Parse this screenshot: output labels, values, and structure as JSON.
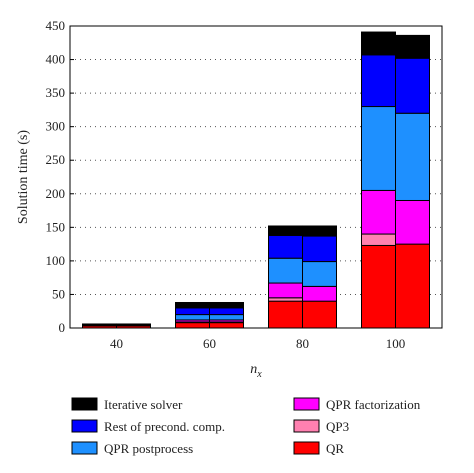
{
  "chart_data": {
    "type": "bar",
    "stacked": true,
    "categories": [
      "40",
      "60",
      "80",
      "100"
    ],
    "bars_per_category": 2,
    "xlabel_main": "n",
    "xlabel_sub": "x",
    "ylabel": "Solution time (s)",
    "ylim": [
      0,
      450
    ],
    "yticks": [
      0,
      50,
      100,
      150,
      200,
      250,
      300,
      350,
      400,
      450
    ],
    "grid": "dotted horizontal",
    "legend_placement": "below",
    "series": [
      {
        "name": "QR",
        "color": "#ff0000",
        "values": [
          [
            3,
            3
          ],
          [
            8,
            8
          ],
          [
            40,
            40
          ],
          [
            123,
            125
          ]
        ]
      },
      {
        "name": "QP3",
        "color": "#ff80b0",
        "values": [
          [
            0,
            0
          ],
          [
            1,
            1
          ],
          [
            5,
            0
          ],
          [
            17,
            0
          ]
        ]
      },
      {
        "name": "QPR factorization",
        "color": "#ff00ff",
        "values": [
          [
            0,
            0
          ],
          [
            3,
            3
          ],
          [
            22,
            22
          ],
          [
            65,
            65
          ]
        ]
      },
      {
        "name": "QPR postprocess",
        "color": "#1e90ff",
        "values": [
          [
            0,
            0
          ],
          [
            8,
            8
          ],
          [
            37,
            37
          ],
          [
            125,
            130
          ]
        ]
      },
      {
        "name": "Rest of precond. comp.",
        "color": "#0000ff",
        "values": [
          [
            0,
            0
          ],
          [
            10,
            10
          ],
          [
            34,
            38
          ],
          [
            77,
            82
          ]
        ]
      },
      {
        "name": "Iterative solver",
        "color": "#000000",
        "values": [
          [
            3,
            3
          ],
          [
            8,
            8
          ],
          [
            14,
            15
          ],
          [
            34,
            34
          ]
        ]
      }
    ],
    "legend_order": [
      "Iterative solver",
      "Rest of precond. comp.",
      "QPR postprocess",
      "QPR factorization",
      "QP3",
      "QR"
    ]
  }
}
